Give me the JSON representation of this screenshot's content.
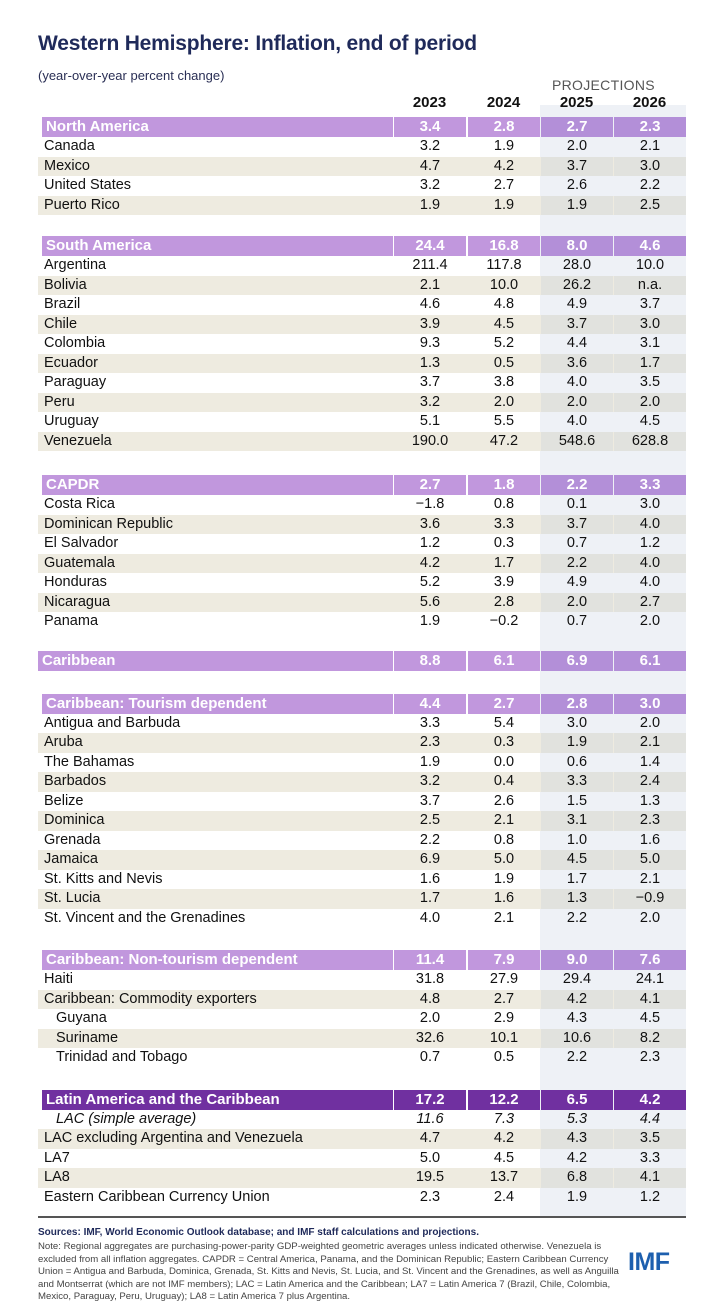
{
  "title": "Western Hemisphere: Inflation, end of period",
  "subtitle": "(year-over-year percent change)",
  "projections_label": "PROJECTIONS",
  "years": [
    "2023",
    "2024",
    "2025",
    "2026"
  ],
  "colors": {
    "header": "#c197dd",
    "header_dark": "#7030a0",
    "title": "#1f2a5a",
    "projection_bg": "#eef1f6",
    "row_shade": "#eeebe0",
    "logo": "#1d5fae"
  },
  "groups": [
    {
      "header": {
        "name": "North America",
        "values": [
          "3.4",
          "2.8",
          "2.7",
          "2.3"
        ]
      },
      "rows": [
        {
          "name": "Canada",
          "values": [
            "3.2",
            "1.9",
            "2.0",
            "2.1"
          ]
        },
        {
          "name": "Mexico",
          "values": [
            "4.7",
            "4.2",
            "3.7",
            "3.0"
          ]
        },
        {
          "name": "United States",
          "values": [
            "3.2",
            "2.7",
            "2.6",
            "2.2"
          ]
        },
        {
          "name": "Puerto Rico",
          "values": [
            "1.9",
            "1.9",
            "1.9",
            "2.5"
          ]
        }
      ]
    },
    {
      "header": {
        "name": "South America",
        "values": [
          "24.4",
          "16.8",
          "8.0",
          "4.6"
        ]
      },
      "rows": [
        {
          "name": "Argentina",
          "values": [
            "211.4",
            "117.8",
            "28.0",
            "10.0"
          ]
        },
        {
          "name": "Bolivia",
          "values": [
            "2.1",
            "10.0",
            "26.2",
            "n.a."
          ]
        },
        {
          "name": "Brazil",
          "values": [
            "4.6",
            "4.8",
            "4.9",
            "3.7"
          ]
        },
        {
          "name": "Chile",
          "values": [
            "3.9",
            "4.5",
            "3.7",
            "3.0"
          ]
        },
        {
          "name": "Colombia",
          "values": [
            "9.3",
            "5.2",
            "4.4",
            "3.1"
          ]
        },
        {
          "name": "Ecuador",
          "values": [
            "1.3",
            "0.5",
            "3.6",
            "1.7"
          ]
        },
        {
          "name": "Paraguay",
          "values": [
            "3.7",
            "3.8",
            "4.0",
            "3.5"
          ]
        },
        {
          "name": "Peru",
          "values": [
            "3.2",
            "2.0",
            "2.0",
            "2.0"
          ]
        },
        {
          "name": "Uruguay",
          "values": [
            "5.1",
            "5.5",
            "4.0",
            "4.5"
          ]
        },
        {
          "name": "Venezuela",
          "values": [
            "190.0",
            "47.2",
            "548.6",
            "628.8"
          ]
        }
      ]
    },
    {
      "header": {
        "name": "CAPDR",
        "values": [
          "2.7",
          "1.8",
          "2.2",
          "3.3"
        ]
      },
      "rows": [
        {
          "name": "Costa Rica",
          "values": [
            "−1.8",
            "0.8",
            "0.1",
            "3.0"
          ]
        },
        {
          "name": "Dominican Republic",
          "values": [
            "3.6",
            "3.3",
            "3.7",
            "4.0"
          ]
        },
        {
          "name": "El Salvador",
          "values": [
            "1.2",
            "0.3",
            "0.7",
            "1.2"
          ]
        },
        {
          "name": "Guatemala",
          "values": [
            "4.2",
            "1.7",
            "2.2",
            "4.0"
          ]
        },
        {
          "name": "Honduras",
          "values": [
            "5.2",
            "3.9",
            "4.9",
            "4.0"
          ]
        },
        {
          "name": "Nicaragua",
          "values": [
            "5.6",
            "2.8",
            "2.0",
            "2.7"
          ]
        },
        {
          "name": "Panama",
          "values": [
            "1.9",
            "−0.2",
            "0.7",
            "2.0"
          ]
        }
      ]
    },
    {
      "header": {
        "name": "Caribbean",
        "values": [
          "8.8",
          "6.1",
          "6.9",
          "6.1"
        ],
        "flush": true
      },
      "rows": []
    },
    {
      "header": {
        "name": "Caribbean: Tourism dependent",
        "values": [
          "4.4",
          "2.7",
          "2.8",
          "3.0"
        ]
      },
      "rows": [
        {
          "name": "Antigua and Barbuda",
          "values": [
            "3.3",
            "5.4",
            "3.0",
            "2.0"
          ]
        },
        {
          "name": "Aruba",
          "values": [
            "2.3",
            "0.3",
            "1.9",
            "2.1"
          ]
        },
        {
          "name": "The Bahamas",
          "values": [
            "1.9",
            "0.0",
            "0.6",
            "1.4"
          ]
        },
        {
          "name": "Barbados",
          "values": [
            "3.2",
            "0.4",
            "3.3",
            "2.4"
          ]
        },
        {
          "name": "Belize",
          "values": [
            "3.7",
            "2.6",
            "1.5",
            "1.3"
          ]
        },
        {
          "name": "Dominica",
          "values": [
            "2.5",
            "2.1",
            "3.1",
            "2.3"
          ]
        },
        {
          "name": "Grenada",
          "values": [
            "2.2",
            "0.8",
            "1.0",
            "1.6"
          ]
        },
        {
          "name": "Jamaica",
          "values": [
            "6.9",
            "5.0",
            "4.5",
            "5.0"
          ]
        },
        {
          "name": "St. Kitts and Nevis",
          "values": [
            "1.6",
            "1.9",
            "1.7",
            "2.1"
          ]
        },
        {
          "name": "St. Lucia",
          "values": [
            "1.7",
            "1.6",
            "1.3",
            "−0.9"
          ]
        },
        {
          "name": "St. Vincent and the Grenadines",
          "values": [
            "4.0",
            "2.1",
            "2.2",
            "2.0"
          ]
        }
      ]
    },
    {
      "header": {
        "name": "Caribbean: Non-tourism dependent",
        "values": [
          "11.4",
          "7.9",
          "9.0",
          "7.6"
        ]
      },
      "rows": [
        {
          "name": "Haiti",
          "values": [
            "31.8",
            "27.9",
            "29.4",
            "24.1"
          ]
        },
        {
          "name": "Caribbean: Commodity exporters",
          "values": [
            "4.8",
            "2.7",
            "4.2",
            "4.1"
          ]
        },
        {
          "name": "Guyana",
          "values": [
            "2.0",
            "2.9",
            "4.3",
            "4.5"
          ],
          "indent": true
        },
        {
          "name": "Suriname",
          "values": [
            "32.6",
            "10.1",
            "10.6",
            "8.2"
          ],
          "indent": true
        },
        {
          "name": "Trinidad and Tobago",
          "values": [
            "0.7",
            "0.5",
            "2.2",
            "2.3"
          ],
          "indent": true
        }
      ]
    },
    {
      "header": {
        "name": "Latin America and the Caribbean",
        "values": [
          "17.2",
          "12.2",
          "6.5",
          "4.2"
        ],
        "dark": true
      },
      "rows": [
        {
          "name": "LAC (simple average)",
          "values": [
            "11.6",
            "7.3",
            "5.3",
            "4.4"
          ],
          "indent": true,
          "italic": true
        },
        {
          "name": "LAC excluding Argentina and Venezuela",
          "values": [
            "4.7",
            "4.2",
            "4.3",
            "3.5"
          ]
        },
        {
          "name": "LA7",
          "values": [
            "5.0",
            "4.5",
            "4.2",
            "3.3"
          ]
        },
        {
          "name": "LA8",
          "values": [
            "19.5",
            "13.7",
            "6.8",
            "4.1"
          ]
        },
        {
          "name": "Eastern Caribbean Currency Union",
          "values": [
            "2.3",
            "2.4",
            "1.9",
            "1.2"
          ]
        }
      ]
    }
  ],
  "sources": "Sources: IMF, World Economic Outlook database; and IMF staff calculations and projections.",
  "note": "Note: Regional aggregates are purchasing-power-parity GDP-weighted geometric averages unless indicated otherwise. Venezuela is excluded from all inflation aggregates. CAPDR = Central America, Panama, and the Dominican Republic; Eastern Caribbean Currency Union = Antigua and Barbuda, Dominica, Grenada, St. Kitts and Nevis, St. Lucia, and St. Vincent and the Grenadines, as well as Anguilla and Montserrat (which are not IMF members); LAC = Latin America and the Caribbean; LA7 = Latin America 7 (Brazil, Chile, Colombia, Mexico, Paraguay, Peru, Uruguay); LA8 = Latin America 7 plus Argentina.",
  "logo": "IMF"
}
